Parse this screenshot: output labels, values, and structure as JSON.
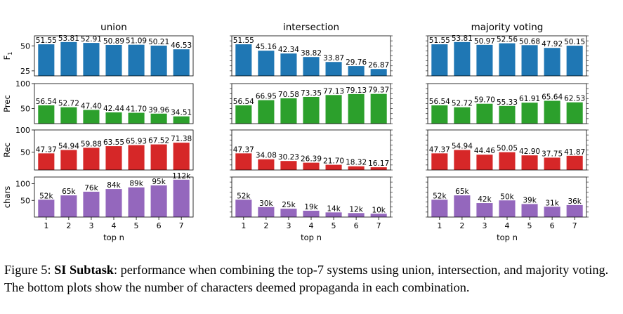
{
  "figure": {
    "caption_label": "Figure 5:",
    "caption_bold": "SI Subtask",
    "caption_text": ": performance when combining the top-7 systems using union, intersection, and majority voting. The bottom plots show the number of characters deemed propaganda in each combination."
  },
  "chart_data": {
    "type": "bar",
    "layout": "grid 4 rows x 3 columns, shared x axis per column",
    "columns": [
      "union",
      "intersection",
      "majority voting"
    ],
    "categories": [
      1,
      2,
      3,
      4,
      5,
      6,
      7
    ],
    "xlabel": "top n",
    "colors": {
      "F1": "#1f77b4",
      "Prec": "#2ca02c",
      "Rec": "#d62728",
      "chars": "#9467bd"
    },
    "rows": [
      {
        "metric": "F1",
        "ylabel_main": "F",
        "ylabel_sub": "1",
        "ylim": [
          20,
          60
        ],
        "yticks": [
          25,
          50
        ],
        "series": [
          {
            "column": "union",
            "values": [
              51.55,
              53.81,
              52.91,
              50.89,
              51.09,
              50.21,
              46.53
            ],
            "labels": [
              "51.55",
              "53.81",
              "52.91",
              "50.89",
              "51.09",
              "50.21",
              "46.53"
            ]
          },
          {
            "column": "intersection",
            "values": [
              51.55,
              45.16,
              42.34,
              38.82,
              33.87,
              29.76,
              26.87
            ],
            "labels": [
              "51.55",
              "45.16",
              "42.34",
              "38.82",
              "33.87",
              "29.76",
              "26.87"
            ]
          },
          {
            "column": "majority voting",
            "values": [
              51.55,
              53.81,
              50.97,
              52.56,
              50.68,
              47.92,
              50.15
            ],
            "labels": [
              "51.55",
              "53.81",
              "50.97",
              "52.56",
              "50.68",
              "47.92",
              "50.15"
            ]
          }
        ]
      },
      {
        "metric": "Prec",
        "ylabel_main": "Prec",
        "ylabel_sub": "",
        "ylim": [
          20,
          100
        ],
        "yticks": [
          50,
          100
        ],
        "series": [
          {
            "column": "union",
            "values": [
              56.54,
              52.72,
              47.4,
              42.44,
              41.7,
              39.96,
              34.51
            ],
            "labels": [
              "56.54",
              "52.72",
              "47.40",
              "42.44",
              "41.70",
              "39.96",
              "34.51"
            ]
          },
          {
            "column": "intersection",
            "values": [
              56.54,
              66.95,
              70.58,
              73.35,
              77.13,
              79.13,
              79.37
            ],
            "labels": [
              "56.54",
              "66.95",
              "70.58",
              "73.35",
              "77.13",
              "79.13",
              "79.37"
            ]
          },
          {
            "column": "majority voting",
            "values": [
              56.54,
              52.72,
              59.7,
              55.33,
              61.91,
              65.64,
              62.53
            ],
            "labels": [
              "56.54",
              "52.72",
              "59.70",
              "55.33",
              "61.91",
              "65.64",
              "62.53"
            ]
          }
        ]
      },
      {
        "metric": "Rec",
        "ylabel_main": "Rec",
        "ylabel_sub": "",
        "ylim": [
          10,
          100
        ],
        "yticks": [
          50,
          100
        ],
        "series": [
          {
            "column": "union",
            "values": [
              47.37,
              54.94,
              59.88,
              63.55,
              65.93,
              67.52,
              71.38
            ],
            "labels": [
              "47.37",
              "54.94",
              "59.88",
              "63.55",
              "65.93",
              "67.52",
              "71.38"
            ]
          },
          {
            "column": "intersection",
            "values": [
              47.37,
              34.08,
              30.23,
              26.39,
              21.7,
              18.32,
              16.17
            ],
            "labels": [
              "47.37",
              "34.08",
              "30.23",
              "26.39",
              "21.70",
              "18.32",
              "16.17"
            ]
          },
          {
            "column": "majority voting",
            "values": [
              47.37,
              54.94,
              44.46,
              50.05,
              42.9,
              37.75,
              41.87
            ],
            "labels": [
              "47.37",
              "54.94",
              "44.46",
              "50.05",
              "42.90",
              "37.75",
              "41.87"
            ]
          }
        ]
      },
      {
        "metric": "chars",
        "ylabel_main": "chars",
        "ylabel_sub": "",
        "ylim": [
          0,
          120
        ],
        "yticks": [
          50,
          100
        ],
        "series": [
          {
            "column": "union",
            "values": [
              52,
              65,
              76,
              84,
              89,
              95,
              112
            ],
            "labels": [
              "52k",
              "65k",
              "76k",
              "84k",
              "89k",
              "95k",
              "112k"
            ]
          },
          {
            "column": "intersection",
            "values": [
              52,
              30,
              25,
              19,
              14,
              12,
              10
            ],
            "labels": [
              "52k",
              "30k",
              "25k",
              "19k",
              "14k",
              "12k",
              "10k"
            ]
          },
          {
            "column": "majority voting",
            "values": [
              52,
              65,
              42,
              50,
              39,
              31,
              36
            ],
            "labels": [
              "52k",
              "65k",
              "42k",
              "50k",
              "39k",
              "31k",
              "36k"
            ]
          }
        ]
      }
    ]
  }
}
